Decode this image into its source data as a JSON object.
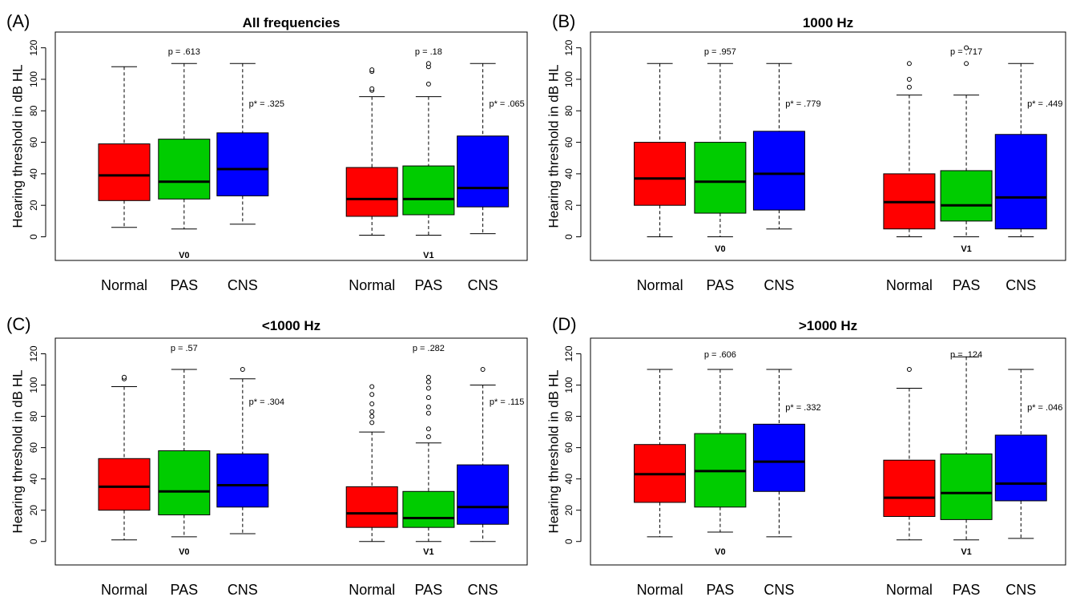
{
  "ylabel": "Hearing threshold in dB HL",
  "group_labels": [
    "Normal",
    "PAS",
    "CNS"
  ],
  "colors": {
    "Normal": "#ff0000",
    "PAS": "#00cc00",
    "CNS": "#0000ff"
  },
  "chart_data": [
    {
      "type": "boxplot",
      "panel_label": "(A)",
      "title": "All frequencies",
      "ylabel": "Hearing threshold in dB HL",
      "yticks": [
        0,
        20,
        40,
        60,
        80,
        100,
        120
      ],
      "ylim": [
        -15,
        130
      ],
      "visits": [
        {
          "label": "V0",
          "p": "p = .613",
          "p_star": "p* = .325",
          "boxes": [
            {
              "group": "Normal",
              "low": 6,
              "q1": 23,
              "median": 39,
              "q3": 59,
              "high": 108,
              "outliers": []
            },
            {
              "group": "PAS",
              "low": 5,
              "q1": 24,
              "median": 35,
              "q3": 62,
              "high": 110,
              "outliers": []
            },
            {
              "group": "CNS",
              "low": 8,
              "q1": 26,
              "median": 43,
              "q3": 66,
              "high": 110,
              "outliers": []
            }
          ]
        },
        {
          "label": "V1",
          "p": "p = .18",
          "p_star": "p* = .065",
          "boxes": [
            {
              "group": "Normal",
              "low": 1,
              "q1": 13,
              "median": 24,
              "q3": 44,
              "high": 89,
              "outliers": [
                93,
                94,
                105,
                106
              ]
            },
            {
              "group": "PAS",
              "low": 1,
              "q1": 14,
              "median": 24,
              "q3": 45,
              "high": 89,
              "outliers": [
                97,
                108,
                110
              ]
            },
            {
              "group": "CNS",
              "low": 2,
              "q1": 19,
              "median": 31,
              "q3": 64,
              "high": 110,
              "outliers": []
            }
          ]
        }
      ]
    },
    {
      "type": "boxplot",
      "panel_label": "(B)",
      "title": "1000 Hz",
      "ylabel": "Hearing threshold in dB HL",
      "yticks": [
        0,
        20,
        40,
        60,
        80,
        100,
        120
      ],
      "ylim": [
        -15,
        130
      ],
      "visits": [
        {
          "label": "V0",
          "p": "p = .957",
          "p_star": "p* = .779",
          "boxes": [
            {
              "group": "Normal",
              "low": 0,
              "q1": 20,
              "median": 37,
              "q3": 60,
              "high": 110,
              "outliers": []
            },
            {
              "group": "PAS",
              "low": 0,
              "q1": 15,
              "median": 35,
              "q3": 60,
              "high": 110,
              "outliers": []
            },
            {
              "group": "CNS",
              "low": 5,
              "q1": 17,
              "median": 40,
              "q3": 67,
              "high": 110,
              "outliers": []
            }
          ]
        },
        {
          "label": "V1",
          "p": "p = .717",
          "p_star": "p* = .449",
          "boxes": [
            {
              "group": "Normal",
              "low": 0,
              "q1": 5,
              "median": 22,
              "q3": 40,
              "high": 90,
              "outliers": [
                95,
                100,
                110
              ]
            },
            {
              "group": "PAS",
              "low": 0,
              "q1": 10,
              "median": 20,
              "q3": 42,
              "high": 90,
              "outliers": [
                110,
                120
              ]
            },
            {
              "group": "CNS",
              "low": 0,
              "q1": 5,
              "median": 25,
              "q3": 65,
              "high": 110,
              "outliers": []
            }
          ]
        }
      ]
    },
    {
      "type": "boxplot",
      "panel_label": "(C)",
      "title": "<1000 Hz",
      "ylabel": "Hearing threshold in dB HL",
      "yticks": [
        0,
        20,
        40,
        60,
        80,
        100,
        120
      ],
      "ylim": [
        -15,
        130
      ],
      "visits": [
        {
          "label": "V0",
          "p": "p = .57",
          "p_star": "p* = .304",
          "boxes": [
            {
              "group": "Normal",
              "low": 1,
              "q1": 20,
              "median": 35,
              "q3": 53,
              "high": 99,
              "outliers": [
                104,
                105
              ]
            },
            {
              "group": "PAS",
              "low": 3,
              "q1": 17,
              "median": 32,
              "q3": 58,
              "high": 110,
              "outliers": []
            },
            {
              "group": "CNS",
              "low": 5,
              "q1": 22,
              "median": 36,
              "q3": 56,
              "high": 104,
              "outliers": [
                110
              ]
            }
          ]
        },
        {
          "label": "V1",
          "p": "p = .282",
          "p_star": "p* = .115",
          "boxes": [
            {
              "group": "Normal",
              "low": 0,
              "q1": 9,
              "median": 18,
              "q3": 35,
              "high": 70,
              "outliers": [
                76,
                80,
                83,
                88,
                94,
                99
              ]
            },
            {
              "group": "PAS",
              "low": 0,
              "q1": 9,
              "median": 15,
              "q3": 32,
              "high": 63,
              "outliers": [
                67,
                72,
                82,
                86,
                92,
                98,
                102,
                105
              ]
            },
            {
              "group": "CNS",
              "low": 0,
              "q1": 11,
              "median": 22,
              "q3": 49,
              "high": 100,
              "outliers": [
                110
              ]
            }
          ]
        }
      ]
    },
    {
      "type": "boxplot",
      "panel_label": "(D)",
      "title": ">1000 Hz",
      "ylabel": "Hearing threshold in dB HL",
      "yticks": [
        0,
        20,
        40,
        60,
        80,
        100,
        120
      ],
      "ylim": [
        -15,
        130
      ],
      "visits": [
        {
          "label": "V0",
          "p": "p = .606",
          "p_star": "p* = .332",
          "boxes": [
            {
              "group": "Normal",
              "low": 3,
              "q1": 25,
              "median": 43,
              "q3": 62,
              "high": 110,
              "outliers": []
            },
            {
              "group": "PAS",
              "low": 6,
              "q1": 22,
              "median": 45,
              "q3": 69,
              "high": 110,
              "outliers": []
            },
            {
              "group": "CNS",
              "low": 3,
              "q1": 32,
              "median": 51,
              "q3": 75,
              "high": 110,
              "outliers": []
            }
          ]
        },
        {
          "label": "V1",
          "p": "p = .124",
          "p_star": "p* = .046",
          "boxes": [
            {
              "group": "Normal",
              "low": 1,
              "q1": 16,
              "median": 28,
              "q3": 52,
              "high": 98,
              "outliers": [
                110
              ]
            },
            {
              "group": "PAS",
              "low": 1,
              "q1": 14,
              "median": 31,
              "q3": 56,
              "high": 118,
              "outliers": []
            },
            {
              "group": "CNS",
              "low": 2,
              "q1": 26,
              "median": 37,
              "q3": 68,
              "high": 110,
              "outliers": []
            }
          ]
        }
      ]
    }
  ]
}
